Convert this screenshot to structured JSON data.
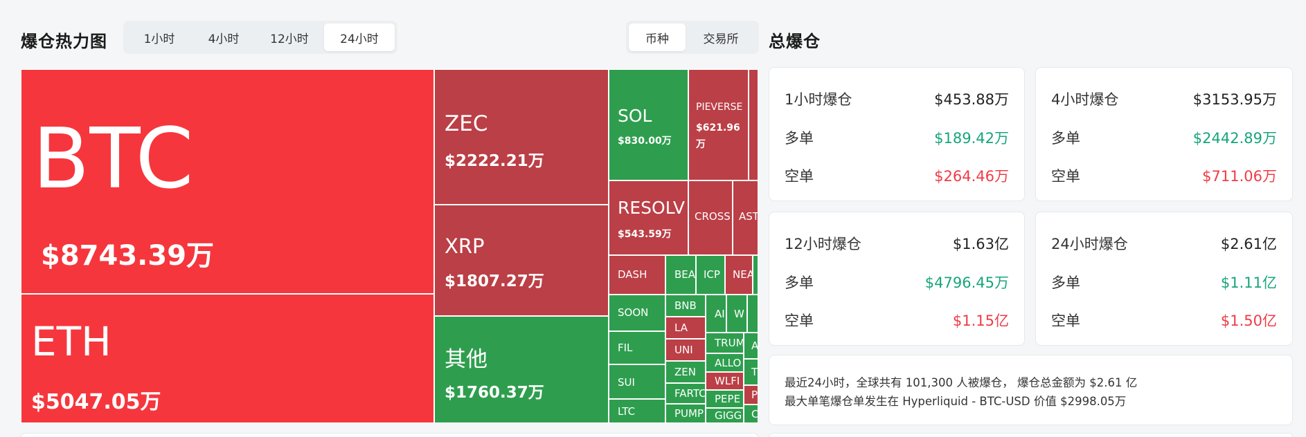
{
  "heatmap": {
    "title": "爆仓热力图",
    "time_tabs": [
      "1小时",
      "4小时",
      "12小时",
      "24小时"
    ],
    "active_time_tab": 3,
    "view_tabs": [
      "币种",
      "交易所"
    ],
    "active_view_tab": 0
  },
  "colors": {
    "long_liq_red": "#f6363d",
    "dark_red": "#bb3f46",
    "green": "#2e9e4e",
    "long_text": "#16a57a",
    "short_text": "#ef3b47"
  },
  "tiles": [
    {
      "symbol": "BTC",
      "value": "$8743.39万",
      "color": "red"
    },
    {
      "symbol": "ETH",
      "value": "$5047.05万",
      "color": "red"
    },
    {
      "symbol": "ZEC",
      "value": "$2222.21万",
      "color": "dred"
    },
    {
      "symbol": "XRP",
      "value": "$1807.27万",
      "color": "dred"
    },
    {
      "symbol": "其他",
      "value": "$1760.37万",
      "color": "green"
    },
    {
      "symbol": "SOL",
      "value": "$830.00万",
      "color": "green"
    },
    {
      "symbol": "PIEVERSE",
      "value": "$621.96万",
      "color": "dred"
    },
    {
      "symbol": "RESOLV",
      "value": "$543.59万",
      "color": "dred"
    },
    {
      "symbol": "CROSS",
      "value": "",
      "color": "dred"
    },
    {
      "symbol": "AST",
      "value": "",
      "color": "dred"
    },
    {
      "symbol": "DASH",
      "value": "",
      "color": "dred"
    },
    {
      "symbol": "BEA",
      "value": "",
      "color": "green"
    },
    {
      "symbol": "ICP",
      "value": "",
      "color": "green"
    },
    {
      "symbol": "NEA",
      "value": "",
      "color": "dred"
    },
    {
      "symbol": "SOON",
      "value": "",
      "color": "green"
    },
    {
      "symbol": "BNB",
      "value": "",
      "color": "green"
    },
    {
      "symbol": "LA",
      "value": "",
      "color": "dred"
    },
    {
      "symbol": "UNI",
      "value": "",
      "color": "dred"
    },
    {
      "symbol": "ZEN",
      "value": "",
      "color": "green"
    },
    {
      "symbol": "FARTC",
      "value": "",
      "color": "green"
    },
    {
      "symbol": "PUMP",
      "value": "",
      "color": "green"
    },
    {
      "symbol": "FIL",
      "value": "",
      "color": "green"
    },
    {
      "symbol": "SUI",
      "value": "",
      "color": "green"
    },
    {
      "symbol": "LTC",
      "value": "",
      "color": "green"
    },
    {
      "symbol": "AI",
      "value": "",
      "color": "green"
    },
    {
      "symbol": "W",
      "value": "",
      "color": "green"
    },
    {
      "symbol": "TRUM",
      "value": "",
      "color": "green"
    },
    {
      "symbol": "ALLO",
      "value": "",
      "color": "green"
    },
    {
      "symbol": "WLFI",
      "value": "",
      "color": "dred"
    },
    {
      "symbol": "PEPE",
      "value": "",
      "color": "green"
    },
    {
      "symbol": "GIGG",
      "value": "",
      "color": "green"
    },
    {
      "symbol": "A",
      "value": "",
      "color": "green"
    },
    {
      "symbol": "T",
      "value": "",
      "color": "green"
    },
    {
      "symbol": "P",
      "value": "",
      "color": "dred"
    },
    {
      "symbol": "C",
      "value": "",
      "color": "green"
    },
    {
      "symbol": "",
      "value": "",
      "color": "dred"
    },
    {
      "symbol": "",
      "value": "",
      "color": "green"
    }
  ],
  "summary": {
    "title": "总爆仓",
    "long_label": "多单",
    "short_label": "空单",
    "cards": [
      {
        "label": "1小时爆仓",
        "total": "$453.88万",
        "long": "$189.42万",
        "short": "$264.46万"
      },
      {
        "label": "4小时爆仓",
        "total": "$3153.95万",
        "long": "$2442.89万",
        "short": "$711.06万"
      },
      {
        "label": "12小时爆仓",
        "total": "$1.63亿",
        "long": "$4796.45万",
        "short": "$1.15亿"
      },
      {
        "label": "24小时爆仓",
        "total": "$2.61亿",
        "long": "$1.11亿",
        "short": "$1.50亿"
      }
    ],
    "note_line1": "最近24小时，全球共有 101,300 人被爆仓， 爆仓总金额为 $2.61 亿",
    "note_line2": "最大单笔爆仓单发生在 Hyperliquid - BTC-USD 价值 $2998.05万"
  }
}
